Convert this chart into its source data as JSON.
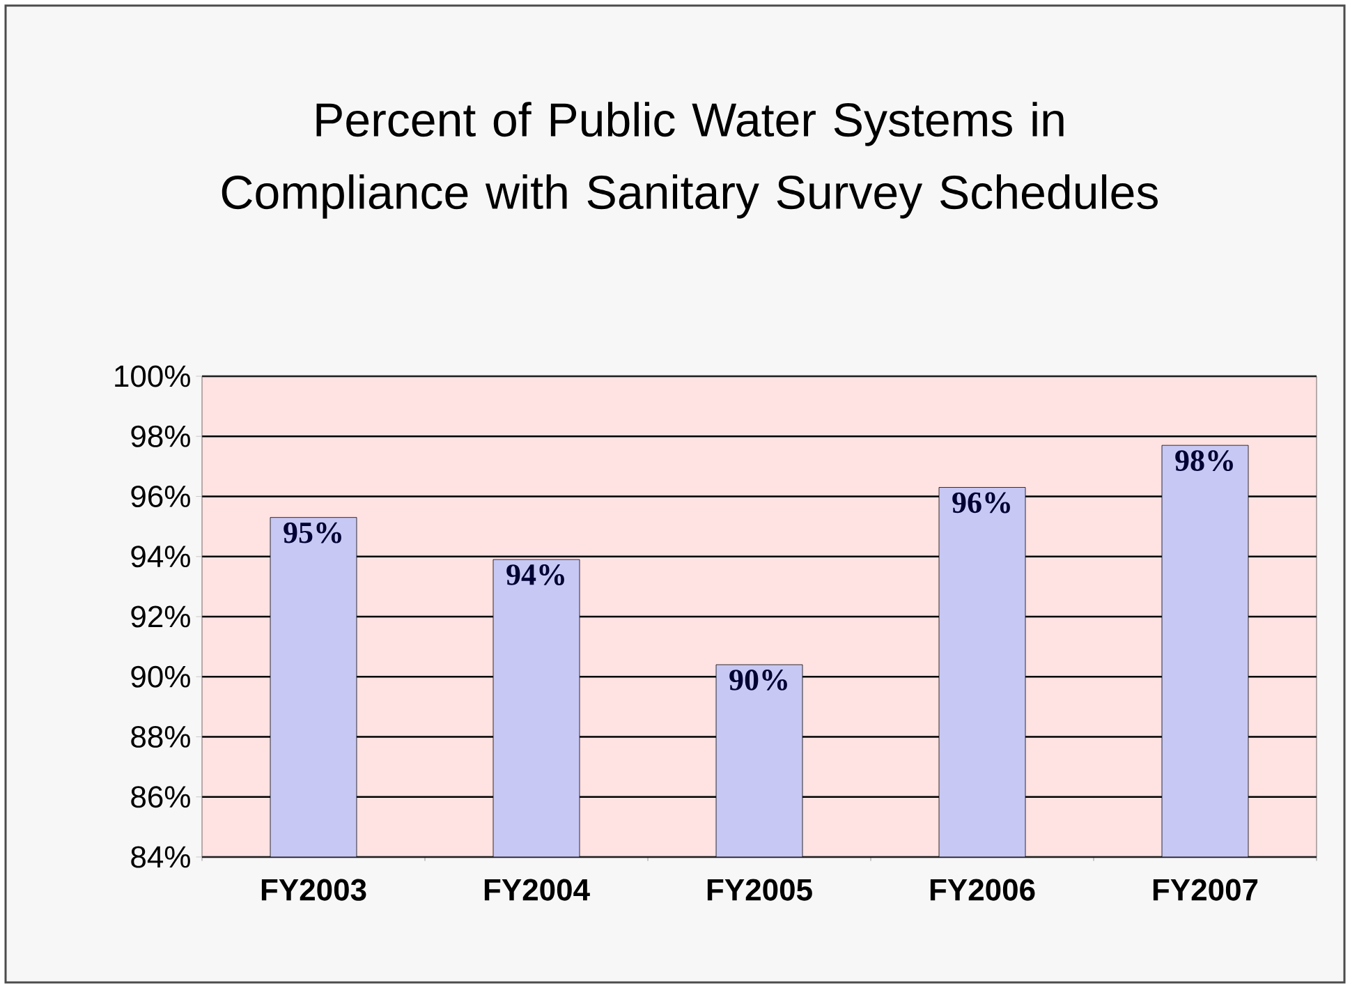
{
  "chart_data": {
    "type": "bar",
    "title": "Percent of Public Water Systems in Compliance with Sanitary Survey Schedules",
    "categories": [
      "FY2003",
      "FY2004",
      "FY2005",
      "FY2006",
      "FY2007"
    ],
    "values": [
      95.3,
      93.9,
      90.4,
      96.3,
      97.7
    ],
    "value_labels": [
      "95%",
      "94%",
      "90%",
      "96%",
      "98%"
    ],
    "color": "#c8c8f4",
    "ylim": [
      84,
      100
    ],
    "yticks": [
      {
        "value": 84,
        "label": "84%"
      },
      {
        "value": 86,
        "label": "86%"
      },
      {
        "value": 88,
        "label": "88%"
      },
      {
        "value": 90,
        "label": "90%"
      },
      {
        "value": 92,
        "label": "92%"
      },
      {
        "value": 94,
        "label": "94%"
      },
      {
        "value": 96,
        "label": "96%"
      },
      {
        "value": 98,
        "label": "98%"
      },
      {
        "value": 100,
        "label": "100%"
      }
    ],
    "grid": "y"
  }
}
